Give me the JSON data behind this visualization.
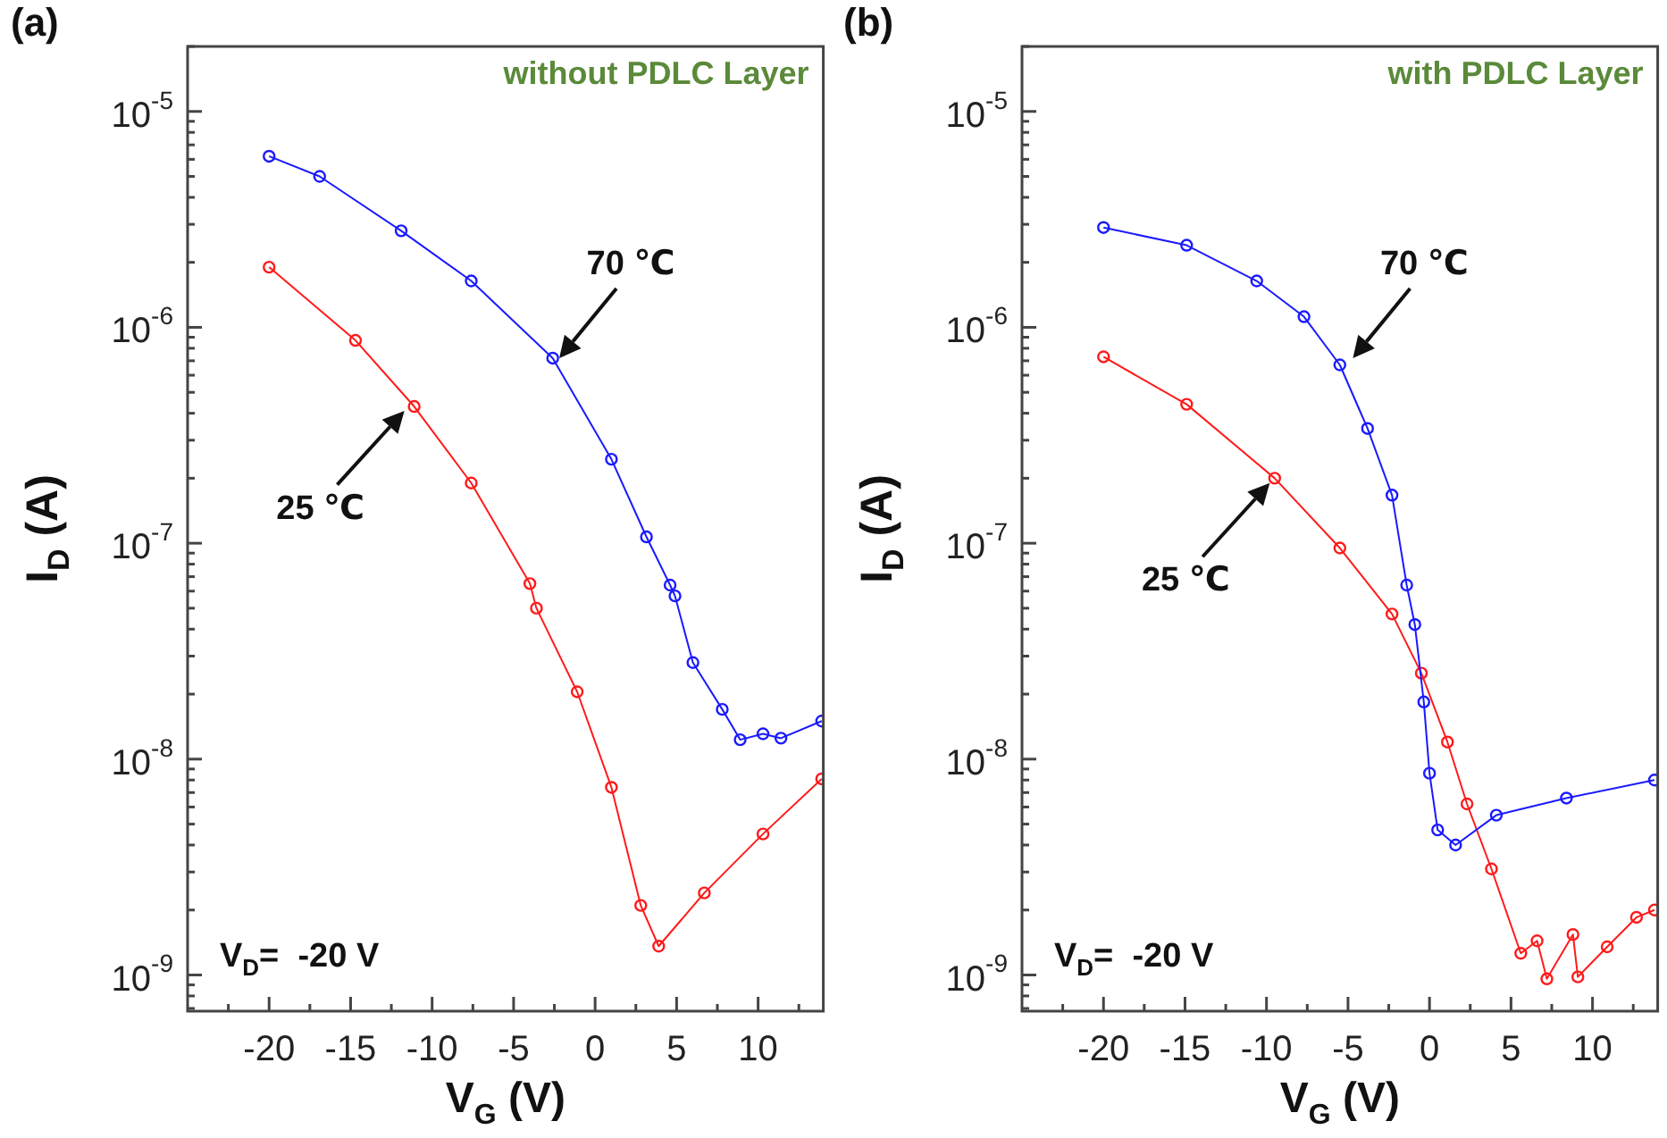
{
  "chart_data": [
    {
      "type": "line",
      "title": "(a)",
      "subtitle": "without PDLC Layer",
      "xlabel": "V$_{G}$ (V)",
      "ylabel": "I$_{D}$ (A)",
      "log": "y",
      "grid": false,
      "legend": false,
      "marker": "circle",
      "line_style": "solid",
      "xlim": [
        -25,
        14
      ],
      "ylim": [
        6.8e-10,
        2e-05
      ],
      "xticks": [
        {
          "value": -22.5,
          "label": null
        },
        -20,
        {
          "value": -17.5,
          "label": null
        },
        -15,
        {
          "value": -12.5,
          "label": null
        },
        -10,
        {
          "value": -7.5,
          "label": null
        },
        -5,
        {
          "value": -2.5,
          "label": null
        },
        0,
        {
          "value": 2.5,
          "label": null
        },
        5,
        {
          "value": 7.5,
          "label": null
        },
        10,
        {
          "value": 12.5,
          "label": null
        }
      ],
      "yticks": [
        {
          "value": 7e-10,
          "label": null
        },
        {
          "value": 8e-10,
          "label": null
        },
        {
          "value": 9e-10,
          "label": null
        },
        {
          "value": 1e-09,
          "label": "10$^{-9}$"
        },
        {
          "value": 2e-09,
          "label": null
        },
        {
          "value": 3e-09,
          "label": null
        },
        {
          "value": 4e-09,
          "label": null
        },
        {
          "value": 5e-09,
          "label": null
        },
        {
          "value": 6e-09,
          "label": null
        },
        {
          "value": 7e-09,
          "label": null
        },
        {
          "value": 8e-09,
          "label": null
        },
        {
          "value": 9e-09,
          "label": null
        },
        {
          "value": 1e-08,
          "label": "10$^{-8}$"
        },
        {
          "value": 2e-08,
          "label": null
        },
        {
          "value": 3e-08,
          "label": null
        },
        {
          "value": 4e-08,
          "label": null
        },
        {
          "value": 5e-08,
          "label": null
        },
        {
          "value": 6e-08,
          "label": null
        },
        {
          "value": 7e-08,
          "label": null
        },
        {
          "value": 8e-08,
          "label": null
        },
        {
          "value": 9e-08,
          "label": null
        },
        {
          "value": 1e-07,
          "label": "10$^{-7}$"
        },
        {
          "value": 2e-07,
          "label": null
        },
        {
          "value": 3e-07,
          "label": null
        },
        {
          "value": 4e-07,
          "label": null
        },
        {
          "value": 5e-07,
          "label": null
        },
        {
          "value": 6e-07,
          "label": null
        },
        {
          "value": 7e-07,
          "label": null
        },
        {
          "value": 8e-07,
          "label": null
        },
        {
          "value": 9e-07,
          "label": null
        },
        {
          "value": 1e-06,
          "label": "10$^{-6}$"
        },
        {
          "value": 2e-06,
          "label": null
        },
        {
          "value": 3e-06,
          "label": null
        },
        {
          "value": 4e-06,
          "label": null
        },
        {
          "value": 5e-06,
          "label": null
        },
        {
          "value": 6e-06,
          "label": null
        },
        {
          "value": 7e-06,
          "label": null
        },
        {
          "value": 8e-06,
          "label": null
        },
        {
          "value": 9e-06,
          "label": null
        },
        {
          "value": 1e-05,
          "label": "10$^{-5}$"
        },
        {
          "value": 2e-05,
          "label": null
        }
      ],
      "series": [
        {
          "color": "#1a1aff",
          "x": [
            -20,
            -16.9,
            -11.9,
            -7.6,
            -2.6,
            1.0,
            3.15,
            4.6,
            4.9,
            6.0,
            7.8,
            8.9,
            10.3,
            11.4,
            13.9
          ],
          "values": [
            6.2e-06,
            5e-06,
            2.8e-06,
            1.64e-06,
            7.2e-07,
            2.45e-07,
            1.07e-07,
            6.4e-08,
            5.7e-08,
            2.8e-08,
            1.7e-08,
            1.23e-08,
            1.31e-08,
            1.25e-08,
            1.5e-08
          ]
        },
        {
          "color": "#ff1a1a",
          "x": [
            -20,
            -14.7,
            -11.1,
            -7.6,
            -4.0,
            -3.6,
            -1.1,
            1.0,
            2.8,
            3.9,
            6.7,
            10.3,
            13.9
          ],
          "values": [
            1.9e-06,
            8.7e-07,
            4.3e-07,
            1.9e-07,
            6.5e-08,
            5e-08,
            2.05e-08,
            7.4e-09,
            2.1e-09,
            1.36e-09,
            2.4e-09,
            4.5e-09,
            8.1e-09
          ]
        }
      ],
      "annotations": [
        {
          "text": "70 ℃",
          "x": -2.2,
          "y": 7.2e-07
        },
        {
          "text": "25 ℃",
          "x": -11.7,
          "y": 4.1e-07
        },
        "V$_{D}$=  -20 V"
      ]
    },
    {
      "type": "line",
      "title": "(b)",
      "subtitle": "with PDLC Layer",
      "xlabel": "V$_{G}$ (V)",
      "ylabel": "I$_{D}$ (A)",
      "log": "y",
      "grid": false,
      "legend": false,
      "marker": "circle",
      "line_style": "solid",
      "xlim": [
        -25,
        14
      ],
      "ylim": [
        6.8e-10,
        2e-05
      ],
      "xticks": [
        {
          "value": -22.5,
          "label": null
        },
        -20,
        {
          "value": -17.5,
          "label": null
        },
        -15,
        {
          "value": -12.5,
          "label": null
        },
        -10,
        {
          "value": -7.5,
          "label": null
        },
        -5,
        {
          "value": -2.5,
          "label": null
        },
        0,
        {
          "value": 2.5,
          "label": null
        },
        5,
        {
          "value": 7.5,
          "label": null
        },
        10,
        {
          "value": 12.5,
          "label": null
        }
      ],
      "yticks": [
        {
          "value": 7e-10,
          "label": null
        },
        {
          "value": 8e-10,
          "label": null
        },
        {
          "value": 9e-10,
          "label": null
        },
        {
          "value": 1e-09,
          "label": "10$^{-9}$"
        },
        {
          "value": 2e-09,
          "label": null
        },
        {
          "value": 3e-09,
          "label": null
        },
        {
          "value": 4e-09,
          "label": null
        },
        {
          "value": 5e-09,
          "label": null
        },
        {
          "value": 6e-09,
          "label": null
        },
        {
          "value": 7e-09,
          "label": null
        },
        {
          "value": 8e-09,
          "label": null
        },
        {
          "value": 9e-09,
          "label": null
        },
        {
          "value": 1e-08,
          "label": "10$^{-8}$"
        },
        {
          "value": 2e-08,
          "label": null
        },
        {
          "value": 3e-08,
          "label": null
        },
        {
          "value": 4e-08,
          "label": null
        },
        {
          "value": 5e-08,
          "label": null
        },
        {
          "value": 6e-08,
          "label": null
        },
        {
          "value": 7e-08,
          "label": null
        },
        {
          "value": 8e-08,
          "label": null
        },
        {
          "value": 9e-08,
          "label": null
        },
        {
          "value": 1e-07,
          "label": "10$^{-7}$"
        },
        {
          "value": 2e-07,
          "label": null
        },
        {
          "value": 3e-07,
          "label": null
        },
        {
          "value": 4e-07,
          "label": null
        },
        {
          "value": 5e-07,
          "label": null
        },
        {
          "value": 6e-07,
          "label": null
        },
        {
          "value": 7e-07,
          "label": null
        },
        {
          "value": 8e-07,
          "label": null
        },
        {
          "value": 9e-07,
          "label": null
        },
        {
          "value": 1e-06,
          "label": "10$^{-6}$"
        },
        {
          "value": 2e-06,
          "label": null
        },
        {
          "value": 3e-06,
          "label": null
        },
        {
          "value": 4e-06,
          "label": null
        },
        {
          "value": 5e-06,
          "label": null
        },
        {
          "value": 6e-06,
          "label": null
        },
        {
          "value": 7e-06,
          "label": null
        },
        {
          "value": 8e-06,
          "label": null
        },
        {
          "value": 9e-06,
          "label": null
        },
        {
          "value": 1e-05,
          "label": "10$^{-5}$"
        },
        {
          "value": 2e-05,
          "label": null
        }
      ],
      "series": [
        {
          "color": "#1a1aff",
          "x": [
            -20,
            -14.9,
            -10.6,
            -7.7,
            -5.5,
            -3.8,
            -2.3,
            -1.4,
            -0.9,
            -0.35,
            0,
            0.5,
            1.6,
            4.1,
            8.4,
            13.8
          ],
          "values": [
            2.9e-06,
            2.4e-06,
            1.64e-06,
            1.12e-06,
            6.7e-07,
            3.4e-07,
            1.67e-07,
            6.4e-08,
            4.2e-08,
            1.84e-08,
            8.6e-09,
            4.7e-09,
            4e-09,
            5.5e-09,
            6.6e-09,
            8e-09
          ]
        },
        {
          "color": "#ff1a1a",
          "x": [
            -20,
            -14.9,
            -9.5,
            -5.5,
            -2.3,
            -0.5,
            1.1,
            2.3,
            3.8,
            5.6,
            6.6,
            7.2,
            8.8,
            9.1,
            10.9,
            12.7,
            13.8
          ],
          "values": [
            7.3e-07,
            4.4e-07,
            2e-07,
            9.5e-08,
            4.7e-08,
            2.5e-08,
            1.2e-08,
            6.2e-09,
            3.1e-09,
            1.26e-09,
            1.44e-09,
            9.6e-10,
            1.54e-09,
            9.8e-10,
            1.35e-09,
            1.85e-09,
            2e-09
          ]
        }
      ],
      "annotations": [
        {
          "text": "70 ℃",
          "x": -4.7,
          "y": 7.2e-07
        },
        {
          "text": "25 ℃",
          "x": -9.8,
          "y": 1.9e-07
        },
        "V$_{D}$=  -20 V"
      ]
    }
  ]
}
